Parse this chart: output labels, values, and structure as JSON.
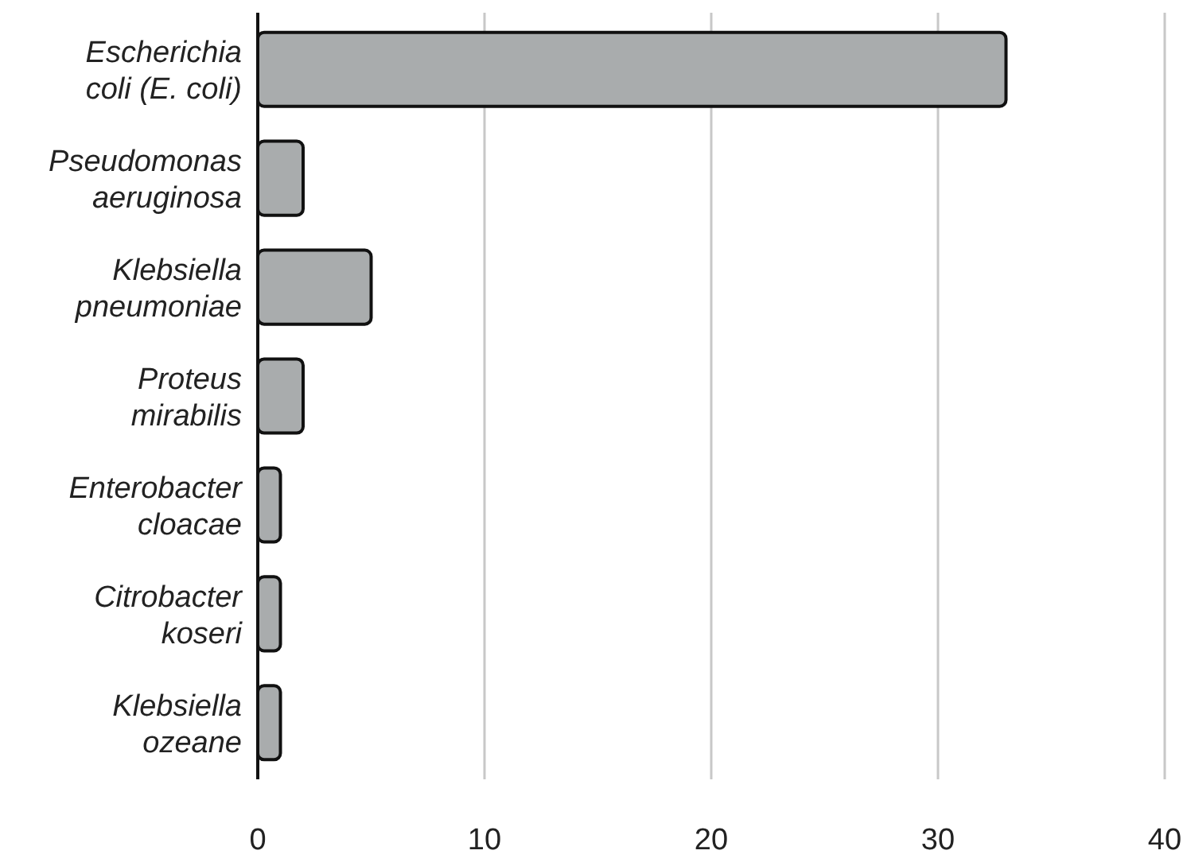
{
  "chart_data": {
    "type": "bar",
    "orientation": "horizontal",
    "categories": [
      "Escherichia coli (E. coli)",
      "Pseudomonas aeruginosa",
      "Klebsiella pneumoniae",
      "Proteus mirabilis",
      "Enterobacter cloacae",
      "Citrobacter koseri",
      "Klebsiella ozeane"
    ],
    "values": [
      33,
      2,
      5,
      2,
      1,
      1,
      1
    ],
    "color": "#a9acad",
    "xlim": [
      0,
      40
    ],
    "xticks": [
      0,
      10,
      20,
      30,
      40
    ],
    "grid": "x"
  }
}
